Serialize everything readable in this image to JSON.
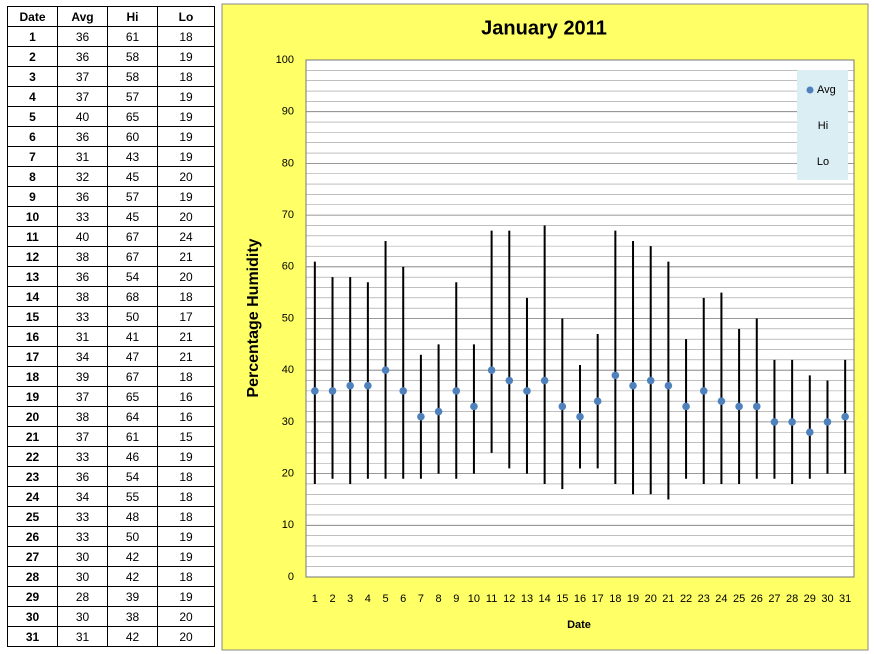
{
  "chart_data": {
    "type": "hilo",
    "title": "January 2011",
    "x_label": "Date",
    "y_label": "Percentage Humidity",
    "categories": [
      "1",
      "2",
      "3",
      "4",
      "5",
      "6",
      "7",
      "8",
      "9",
      "10",
      "11",
      "12",
      "13",
      "14",
      "15",
      "16",
      "17",
      "18",
      "19",
      "20",
      "21",
      "22",
      "23",
      "24",
      "25",
      "26",
      "27",
      "28",
      "29",
      "30",
      "31"
    ],
    "series": [
      {
        "name": "Avg",
        "color": "#4f81bd",
        "values": [
          36,
          36,
          37,
          37,
          40,
          36,
          31,
          32,
          36,
          33,
          40,
          38,
          36,
          38,
          33,
          31,
          34,
          39,
          37,
          38,
          37,
          33,
          36,
          34,
          33,
          33,
          30,
          30,
          28,
          30,
          31
        ]
      },
      {
        "name": "Hi",
        "values": [
          61,
          58,
          58,
          57,
          65,
          60,
          43,
          45,
          57,
          45,
          67,
          67,
          54,
          68,
          50,
          41,
          47,
          67,
          65,
          64,
          61,
          46,
          54,
          55,
          48,
          50,
          42,
          42,
          39,
          38,
          42
        ]
      },
      {
        "name": "Lo",
        "values": [
          18,
          19,
          18,
          19,
          19,
          19,
          19,
          20,
          19,
          20,
          24,
          21,
          20,
          18,
          17,
          21,
          21,
          18,
          16,
          16,
          15,
          19,
          18,
          18,
          18,
          19,
          19,
          18,
          19,
          20,
          20
        ]
      }
    ],
    "hilo_color": "#000000",
    "ylim": [
      0,
      100
    ],
    "yticks": [
      0,
      10,
      20,
      30,
      40,
      50,
      60,
      70,
      80,
      90,
      100
    ],
    "grid": true,
    "legend": "top-right",
    "background": "#ffff66"
  }
}
